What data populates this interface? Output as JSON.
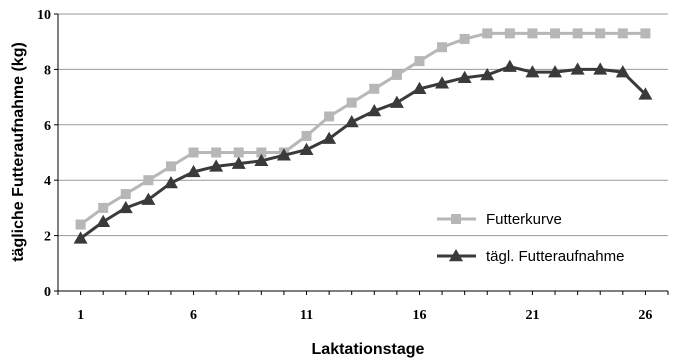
{
  "chart_data": {
    "type": "line",
    "title": "",
    "xlabel": "Laktationstage",
    "ylabel": "tägliche Futteraufnahme (kg)",
    "x": [
      1,
      2,
      3,
      4,
      5,
      6,
      7,
      8,
      9,
      10,
      11,
      12,
      13,
      14,
      15,
      16,
      17,
      18,
      19,
      20,
      21,
      22,
      23,
      24,
      25,
      26
    ],
    "x_tick_labels": [
      "1",
      "6",
      "11",
      "16",
      "21",
      "26"
    ],
    "x_ticks": [
      1,
      6,
      11,
      16,
      21,
      26
    ],
    "xlim": [
      0,
      27
    ],
    "ylim": [
      0,
      10
    ],
    "y_tick_labels": [
      "0",
      "2",
      "4",
      "6",
      "8",
      "10"
    ],
    "y_ticks": [
      0,
      2,
      4,
      6,
      8,
      10
    ],
    "grid": "horizontal",
    "legend_position": "right",
    "series": [
      {
        "name": "Futterkurve",
        "color": "#b7b7b7",
        "marker": "square",
        "values": [
          2.4,
          3.0,
          3.5,
          4.0,
          4.5,
          5.0,
          5.0,
          5.0,
          5.0,
          5.0,
          5.6,
          6.3,
          6.8,
          7.3,
          7.8,
          8.3,
          8.8,
          9.1,
          9.3,
          9.3,
          9.3,
          9.3,
          9.3,
          9.3,
          9.3,
          9.3
        ]
      },
      {
        "name": "tägl. Futteraufnahme",
        "color": "#3a3a3a",
        "marker": "triangle",
        "values": [
          1.9,
          2.5,
          3.0,
          3.3,
          3.9,
          4.3,
          4.5,
          4.6,
          4.7,
          4.9,
          5.1,
          5.5,
          6.1,
          6.5,
          6.8,
          7.3,
          7.5,
          7.7,
          7.8,
          8.1,
          7.9,
          7.9,
          8.0,
          8.0,
          7.9,
          7.1
        ]
      }
    ]
  }
}
